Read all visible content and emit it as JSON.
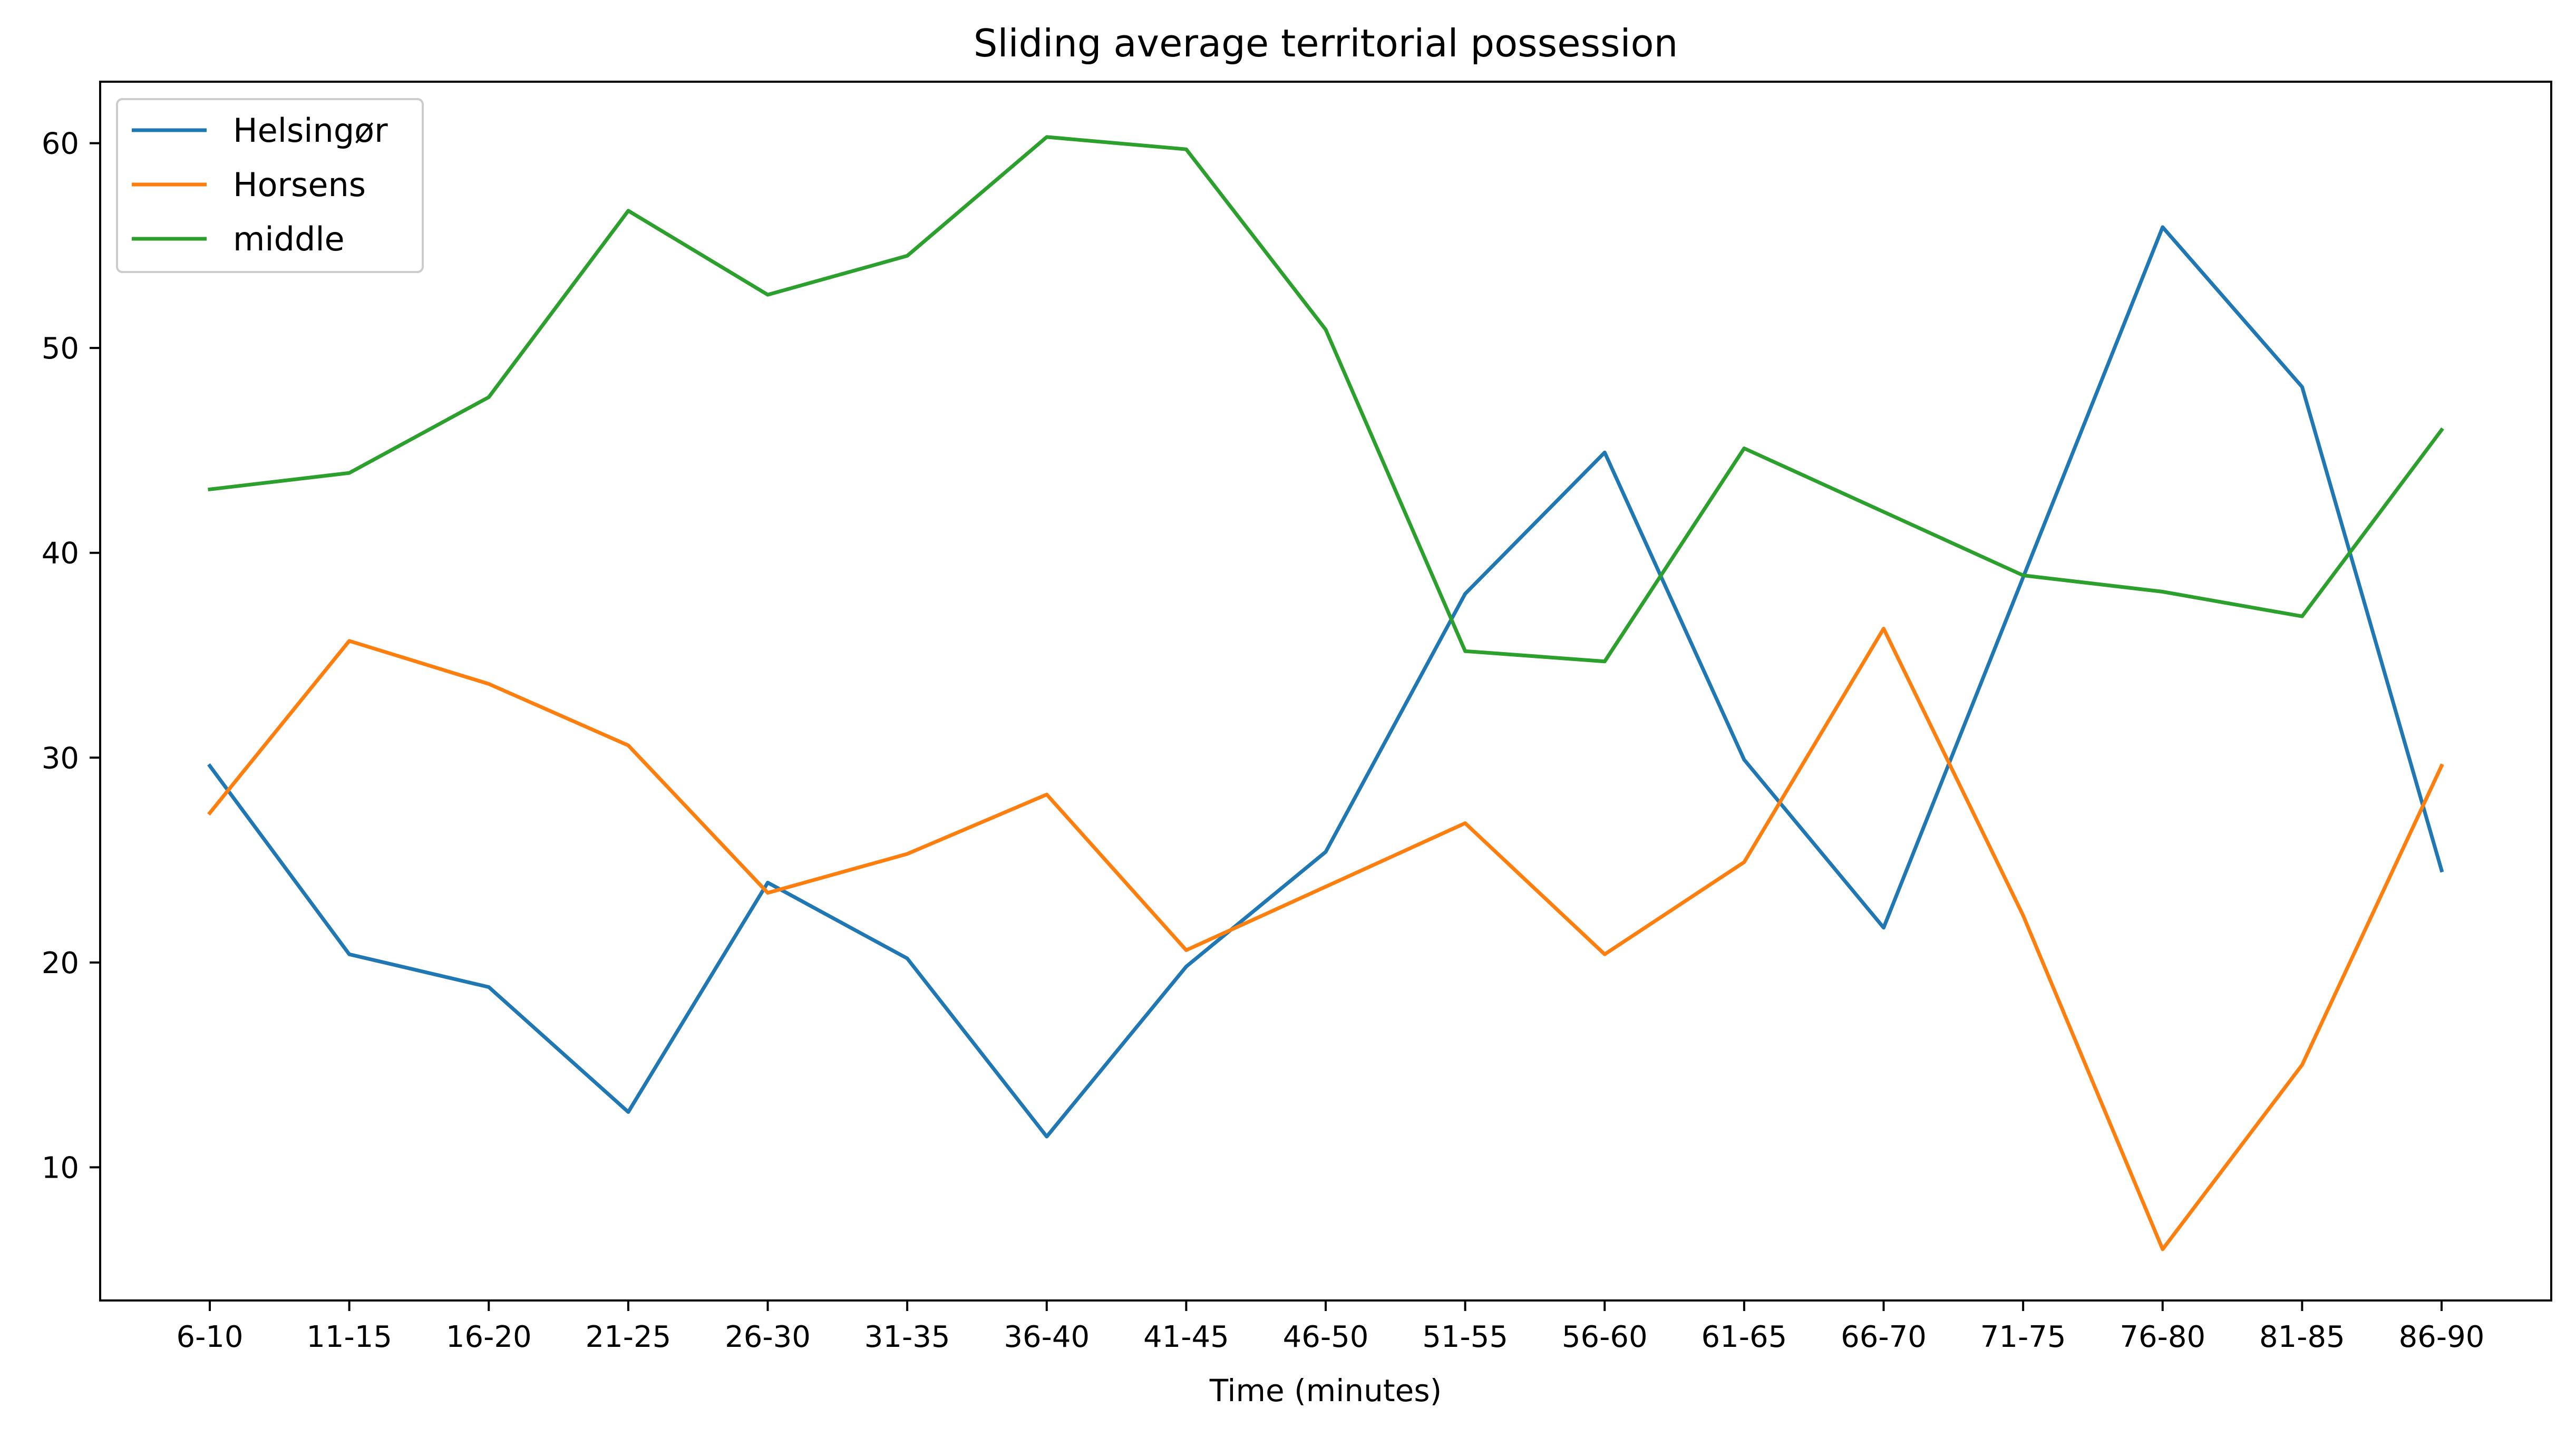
{
  "chart_data": {
    "type": "line",
    "title": "Sliding average territorial possession",
    "xlabel": "Time (minutes)",
    "ylabel": "",
    "categories": [
      "6-10",
      "11-15",
      "16-20",
      "21-25",
      "26-30",
      "31-35",
      "36-40",
      "41-45",
      "46-50",
      "51-55",
      "56-60",
      "61-65",
      "66-70",
      "71-75",
      "76-80",
      "81-85",
      "86-90"
    ],
    "ylim": [
      3.5,
      63
    ],
    "yticks": [
      10,
      20,
      30,
      40,
      50,
      60
    ],
    "grid": false,
    "legend_position": "top-left",
    "series": [
      {
        "name": "Helsingør",
        "color": "#1f77b4",
        "values": [
          29.6,
          20.4,
          18.8,
          12.7,
          23.9,
          20.2,
          11.5,
          19.8,
          25.4,
          38.0,
          44.9,
          29.9,
          21.7,
          38.8,
          55.9,
          48.1,
          24.5
        ]
      },
      {
        "name": "Horsens",
        "color": "#ff7f0e",
        "values": [
          27.3,
          35.7,
          33.6,
          30.6,
          23.4,
          25.3,
          28.2,
          20.6,
          23.7,
          26.8,
          20.4,
          24.9,
          36.3,
          22.3,
          6.0,
          15.0,
          29.6
        ]
      },
      {
        "name": "middle",
        "color": "#2ca02c",
        "values": [
          43.1,
          43.9,
          47.6,
          56.7,
          52.6,
          54.5,
          60.3,
          59.7,
          50.9,
          35.2,
          34.7,
          45.1,
          42.0,
          38.9,
          38.1,
          36.9,
          46.0
        ]
      }
    ]
  }
}
